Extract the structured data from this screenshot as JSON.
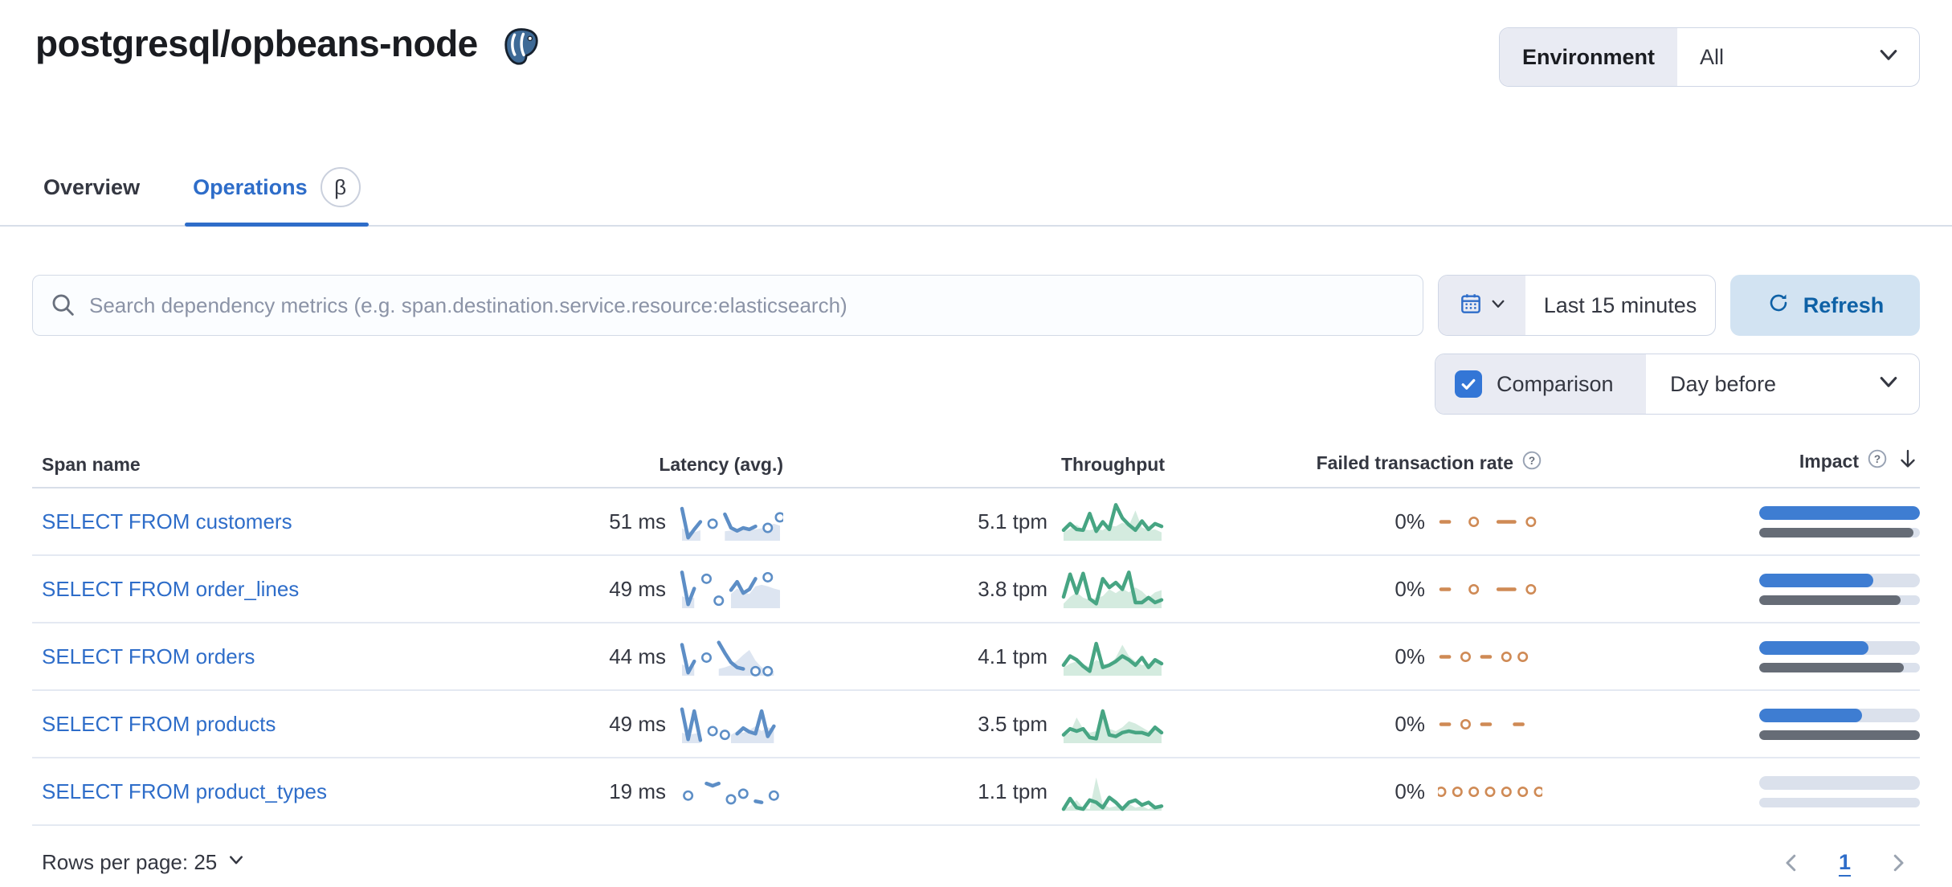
{
  "page": {
    "title": "postgresql/opbeans-node"
  },
  "environment_filter": {
    "label": "Environment",
    "value": "All"
  },
  "tabs": [
    {
      "label": "Overview",
      "active": false
    },
    {
      "label": "Operations",
      "active": true,
      "badge": "β"
    }
  ],
  "toolbar": {
    "search_placeholder": "Search dependency metrics (e.g. span.destination.service.resource:elasticsearch)",
    "time_range": "Last 15 minutes",
    "refresh_label": "Refresh",
    "comparison_label": "Comparison",
    "comparison_checked": true,
    "comparison_value": "Day before"
  },
  "table": {
    "columns": [
      "Span name",
      "Latency (avg.)",
      "Throughput",
      "Failed transaction rate",
      "Impact"
    ],
    "sort_column": "Impact",
    "sort_direction": "desc",
    "rows": [
      {
        "span_name": "SELECT FROM customers",
        "latency": "51 ms",
        "throughput": "5.1 tpm",
        "failed_rate": "0%",
        "impact_current": 100,
        "impact_previous": 96
      },
      {
        "span_name": "SELECT FROM order_lines",
        "latency": "49 ms",
        "throughput": "3.8 tpm",
        "failed_rate": "0%",
        "impact_current": 71,
        "impact_previous": 88
      },
      {
        "span_name": "SELECT FROM orders",
        "latency": "44 ms",
        "throughput": "4.1 tpm",
        "failed_rate": "0%",
        "impact_current": 68,
        "impact_previous": 90
      },
      {
        "span_name": "SELECT FROM products",
        "latency": "49 ms",
        "throughput": "3.5 tpm",
        "failed_rate": "0%",
        "impact_current": 64,
        "impact_previous": 100
      },
      {
        "span_name": "SELECT FROM product_types",
        "latency": "19 ms",
        "throughput": "1.1 tpm",
        "failed_rate": "0%",
        "impact_current": 0,
        "impact_previous": 0
      }
    ]
  },
  "pagination": {
    "rows_per_page_label": "Rows per page: 25",
    "current_page": "1"
  },
  "icons": {
    "title": "postgresql-elephant",
    "environment": "chevron-down",
    "search": "magnifier",
    "datepicker": "calendar + chevron-down",
    "refresh": "circular-arrow",
    "comparison": "checked-checkbox",
    "column_help": "question-circle",
    "sort": "arrow-down",
    "rows_per_page": "chevron-down",
    "pager_prev": "chevron-left",
    "pager_next": "chevron-right",
    "beta": "β"
  },
  "colors": {
    "title_text": "#1a1c21",
    "text": "#343741",
    "muted": "#69707d",
    "link_blue": "#2e6dc9",
    "tab_underline": "#2e6dc9",
    "refresh_bg": "#d2e3f2",
    "refresh_text": "#0e61a6",
    "checkbox_blue": "#3376d6",
    "segment_bg": "#e9ebf3",
    "border": "#d8dee9",
    "row_border": "#e4e9f2",
    "impact_current": "#3e7dd2",
    "impact_previous": "#666c76",
    "impact_track": "#dbe1ec",
    "latency_line": "#5d8ec6",
    "latency_area": "#d9e2f0",
    "throughput_line": "#47a583",
    "throughput_area": "#cfe9dc",
    "failed_line": "#cf8a55"
  },
  "chart_data": {
    "type": "sparklines",
    "note": "normalized 0-1 values sampled from row sparklines; null = gap; isolated point = hollow dot; *_area = 'day before' comparison silhouette",
    "rows": [
      {
        "span": "SELECT FROM customers",
        "latency_points": [
          0.85,
          0.08,
          0.3,
          0.5,
          null,
          0.45,
          null,
          0.7,
          0.34,
          0.26,
          0.34,
          0.3,
          0.38,
          null,
          0.34,
          null,
          0.62
        ],
        "latency_area": [
          0.33,
          0.25,
          0.22,
          0.28,
          null,
          null,
          null,
          0.25,
          0.27,
          0.25,
          0.3,
          0.33,
          0.3,
          0.33,
          0.38,
          0.45,
          0.4
        ],
        "throughput_points": [
          0.28,
          0.45,
          0.3,
          0.28,
          0.72,
          0.25,
          0.5,
          0.3,
          0.95,
          0.6,
          0.42,
          0.28,
          0.52,
          0.3,
          0.45,
          0.38
        ],
        "throughput_area": [
          0.22,
          0.32,
          0.42,
          0.3,
          0.28,
          0.32,
          0.28,
          0.4,
          0.38,
          0.48,
          0.4,
          0.8,
          0.35,
          0.28,
          0.3,
          0.22
        ],
        "failed_points": [
          0.5,
          0.5,
          null,
          null,
          0.5,
          null,
          null,
          0.5,
          0.5,
          0.5,
          null,
          0.5,
          null
        ]
      },
      {
        "span": "SELECT FROM order_lines",
        "latency_points": [
          0.95,
          0.1,
          0.52,
          null,
          0.78,
          null,
          0.2,
          null,
          0.48,
          0.7,
          0.4,
          0.5,
          0.78,
          null,
          0.82,
          null,
          null
        ],
        "latency_area": [
          0.32,
          0.25,
          0.28,
          null,
          null,
          null,
          null,
          null,
          0.38,
          0.52,
          0.42,
          0.38,
          0.58,
          0.62,
          0.58,
          0.52,
          0.48
        ],
        "throughput_points": [
          0.3,
          0.9,
          0.4,
          0.92,
          0.25,
          0.12,
          0.78,
          0.55,
          0.68,
          0.5,
          0.95,
          0.15,
          0.15,
          0.28,
          0.15,
          0.22
        ],
        "throughput_area": [
          0.12,
          0.3,
          0.42,
          0.28,
          0.22,
          0.28,
          0.32,
          0.5,
          0.4,
          0.52,
          0.42,
          0.55,
          0.45,
          0.28,
          0.42,
          0.48
        ],
        "failed_points": [
          0.5,
          0.5,
          null,
          null,
          0.5,
          null,
          null,
          0.5,
          0.5,
          0.5,
          null,
          0.5,
          null
        ]
      },
      {
        "span": "SELECT FROM orders",
        "latency_points": [
          0.82,
          0.08,
          0.38,
          null,
          0.48,
          null,
          0.88,
          0.6,
          0.35,
          0.22,
          0.18,
          null,
          0.12,
          null,
          0.12,
          null,
          null
        ],
        "latency_area": [
          0.3,
          0.22,
          0.26,
          null,
          null,
          null,
          0.18,
          0.22,
          0.28,
          0.4,
          0.55,
          0.68,
          0.4,
          0.22,
          0.15,
          0.12,
          null
        ],
        "throughput_points": [
          0.28,
          0.52,
          0.42,
          0.25,
          0.12,
          0.85,
          0.22,
          0.28,
          0.38,
          0.52,
          0.42,
          0.28,
          0.48,
          0.22,
          0.42,
          0.32
        ],
        "throughput_area": [
          0.22,
          0.32,
          0.38,
          0.32,
          0.22,
          0.42,
          0.32,
          0.28,
          0.48,
          0.82,
          0.52,
          0.38,
          0.28,
          0.32,
          0.38,
          0.28
        ],
        "failed_points": [
          0.5,
          0.5,
          null,
          0.5,
          null,
          0.5,
          0.5,
          null,
          0.5,
          null,
          0.5,
          null,
          null
        ]
      },
      {
        "span": "SELECT FROM products",
        "latency_points": [
          0.9,
          0.1,
          0.85,
          0.08,
          null,
          0.32,
          null,
          0.22,
          null,
          0.25,
          0.4,
          0.3,
          0.25,
          0.85,
          0.18,
          0.45,
          null
        ],
        "latency_area": [
          0.28,
          0.22,
          0.25,
          0.28,
          null,
          null,
          null,
          null,
          0.22,
          0.32,
          0.28,
          0.35,
          0.45,
          0.32,
          0.42,
          0.38,
          null
        ],
        "throughput_points": [
          0.22,
          0.38,
          0.32,
          0.38,
          0.15,
          0.12,
          0.85,
          0.22,
          0.18,
          0.28,
          0.32,
          0.28,
          0.28,
          0.22,
          0.42,
          0.28
        ],
        "throughput_area": [
          0.18,
          0.28,
          0.68,
          0.38,
          0.28,
          0.32,
          0.92,
          0.38,
          0.32,
          0.42,
          0.58,
          0.52,
          0.42,
          0.32,
          0.38,
          0.22
        ],
        "failed_points": [
          0.5,
          0.5,
          null,
          0.5,
          null,
          0.5,
          0.5,
          null,
          null,
          0.5,
          0.5,
          null,
          null
        ]
      },
      {
        "span": "SELECT FROM product_types",
        "latency_points": [
          null,
          0.4,
          null,
          null,
          0.72,
          0.66,
          0.72,
          null,
          0.3,
          null,
          0.45,
          null,
          0.25,
          0.22,
          null,
          0.4,
          null
        ],
        "latency_area": null,
        "throughput_points": [
          0.04,
          0.32,
          0.08,
          0.04,
          0.28,
          0.22,
          0.08,
          0.35,
          0.22,
          0.04,
          0.22,
          0.28,
          0.15,
          0.22,
          0.08,
          0.12
        ],
        "throughput_area": [
          0.04,
          0.12,
          0.28,
          0.08,
          0.04,
          0.88,
          0.18,
          0.08,
          0.12,
          0.08,
          0.18,
          0.08,
          0.12,
          0.04,
          0.12,
          0.08
        ],
        "failed_points": [
          0.5,
          null,
          0.5,
          null,
          0.5,
          null,
          0.5,
          null,
          0.5,
          null,
          0.5,
          null,
          0.5
        ]
      }
    ]
  }
}
